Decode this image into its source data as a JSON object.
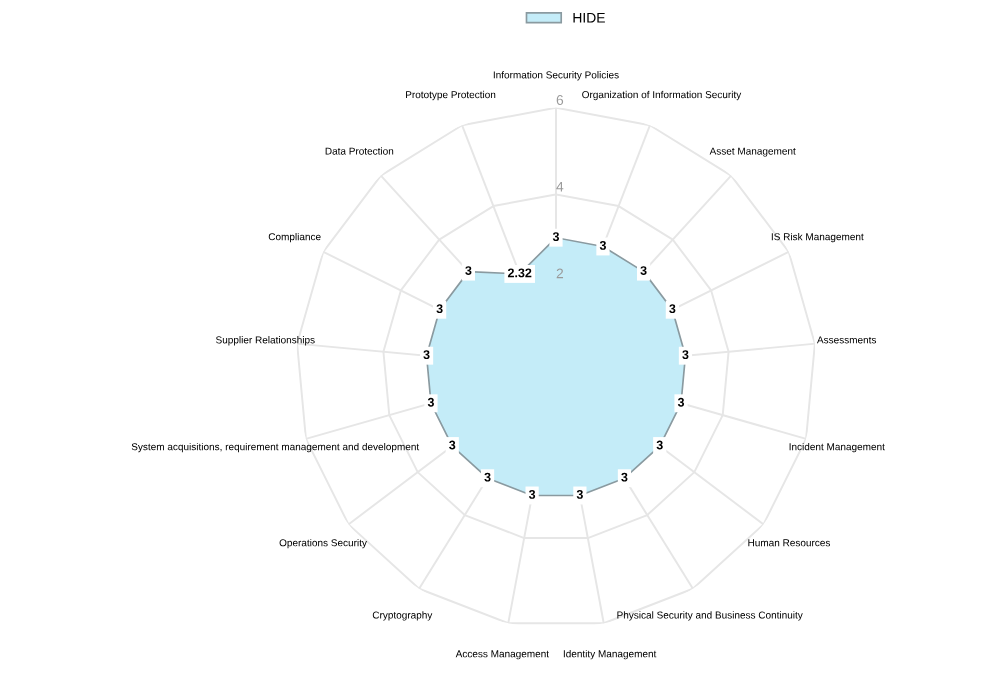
{
  "chart_data": {
    "type": "radar",
    "categories": [
      "Information Security Policies",
      "Organization of Information Security",
      "Asset Management",
      "IS Risk Management",
      "Assessments",
      "Incident Management",
      "Human Resources",
      "Physical Security and Business Continuity",
      "Identity Management",
      "Access Management",
      "Cryptography",
      "Operations Security",
      "System acquisitions, requirement management and development",
      "Supplier Relationships",
      "Compliance",
      "Data Protection",
      "Prototype Protection"
    ],
    "series": [
      {
        "name": "HIDE",
        "color": "#c4ecf8",
        "values": [
          3,
          3,
          3,
          3,
          3,
          3,
          3,
          3,
          3,
          3,
          3,
          3,
          3,
          3,
          3,
          3,
          2.32
        ]
      }
    ],
    "ylim": [
      0,
      6
    ],
    "yticks": [
      2,
      4,
      6
    ],
    "grid": true,
    "legend": "top",
    "data_labels": true
  }
}
